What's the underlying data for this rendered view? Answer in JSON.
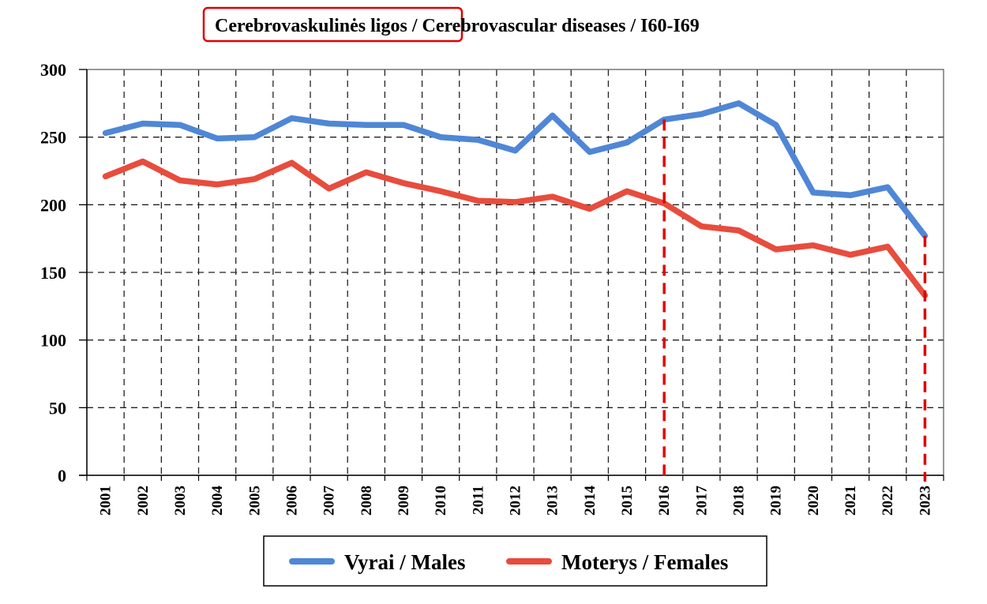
{
  "chart_data": {
    "type": "line",
    "title": "Cerebrovaskulinės ligos / Cerebrovascular diseases / I60-I69",
    "title_parts": {
      "highlighted": "Cerebrovaskulinės ligos",
      "rest": " / Cerebrovascular diseases / I60-I69"
    },
    "highlight_color": "#e00000",
    "xlabel": "",
    "ylabel": "",
    "x": [
      "2001",
      "2002",
      "2003",
      "2004",
      "2005",
      "2006",
      "2007",
      "2008",
      "2009",
      "2010",
      "2011",
      "2012",
      "2013",
      "2014",
      "2015",
      "2016",
      "2017",
      "2018",
      "2019",
      "2020",
      "2021",
      "2022",
      "2023"
    ],
    "ylim": [
      0,
      300
    ],
    "yticks": [
      0,
      50,
      100,
      150,
      200,
      250,
      300
    ],
    "grid": true,
    "legend_position": "bottom-center",
    "series": [
      {
        "name": "Vyrai / Males",
        "color": "#4f87d6",
        "values": [
          253,
          260,
          259,
          249,
          250,
          264,
          260,
          259,
          259,
          250,
          248,
          240,
          266,
          239,
          246,
          263,
          267,
          275,
          259,
          209,
          207,
          213,
          177
        ]
      },
      {
        "name": "Moterys / Females",
        "color": "#e84c3d",
        "values": [
          221,
          232,
          218,
          215,
          219,
          231,
          212,
          224,
          216,
          210,
          203,
          202,
          206,
          197,
          210,
          201,
          184,
          181,
          167,
          170,
          163,
          169,
          133
        ]
      }
    ],
    "reference_lines": [
      {
        "x": "2016",
        "color": "#e00000",
        "style": "dashed",
        "from_series": "Vyrai / Males"
      },
      {
        "x": "2023",
        "color": "#e00000",
        "style": "dashed",
        "from_series": "Vyrai / Males"
      }
    ]
  }
}
